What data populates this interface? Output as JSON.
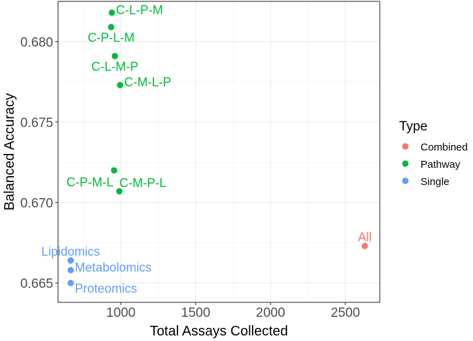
{
  "chart_data": {
    "type": "scatter",
    "xlabel": "Total Assays Collected",
    "ylabel": "Balanced Accuracy",
    "xlim": [
      580,
      2730
    ],
    "ylim": [
      0.6638,
      0.6825
    ],
    "xticks": [
      1000,
      1500,
      2000,
      2500
    ],
    "yticks": [
      0.665,
      0.67,
      0.675,
      0.68
    ],
    "ytick_labels": [
      "0.665",
      "0.670",
      "0.675",
      "0.680"
    ],
    "xtick_labels": [
      "1000",
      "1500",
      "2000",
      "2500"
    ],
    "grid": true,
    "legend": {
      "title": "Type",
      "position": "right",
      "entries": [
        {
          "name": "Combined",
          "color": "#F8766D"
        },
        {
          "name": "Pathway",
          "color": "#00BA38"
        },
        {
          "name": "Single",
          "color": "#619CFF"
        }
      ]
    },
    "points": [
      {
        "label": "C-L-P-M",
        "x": 940,
        "y": 0.6818,
        "type": "Pathway",
        "anchor": "right"
      },
      {
        "label": "C-P-L-M",
        "x": 935,
        "y": 0.6809,
        "type": "Pathway",
        "anchor": "below"
      },
      {
        "label": "C-L-M-P",
        "x": 960,
        "y": 0.6791,
        "type": "Pathway",
        "anchor": "below"
      },
      {
        "label": "C-M-L-P",
        "x": 995,
        "y": 0.6773,
        "type": "Pathway",
        "anchor": "right"
      },
      {
        "label": "C-P-M-L",
        "x": 955,
        "y": 0.672,
        "type": "Pathway",
        "anchor": "below-left"
      },
      {
        "label": "C-M-P-L",
        "x": 990,
        "y": 0.6707,
        "type": "Pathway",
        "anchor": "above-right"
      },
      {
        "label": "All",
        "x": 2630,
        "y": 0.6673,
        "type": "Combined",
        "anchor": "above"
      },
      {
        "label": "Lipidomics",
        "x": 665,
        "y": 0.6664,
        "type": "Single",
        "anchor": "above"
      },
      {
        "label": "Metabolomics",
        "x": 665,
        "y": 0.6658,
        "type": "Single",
        "anchor": "right"
      },
      {
        "label": "Proteomics",
        "x": 665,
        "y": 0.665,
        "type": "Single",
        "anchor": "below-right"
      }
    ]
  }
}
